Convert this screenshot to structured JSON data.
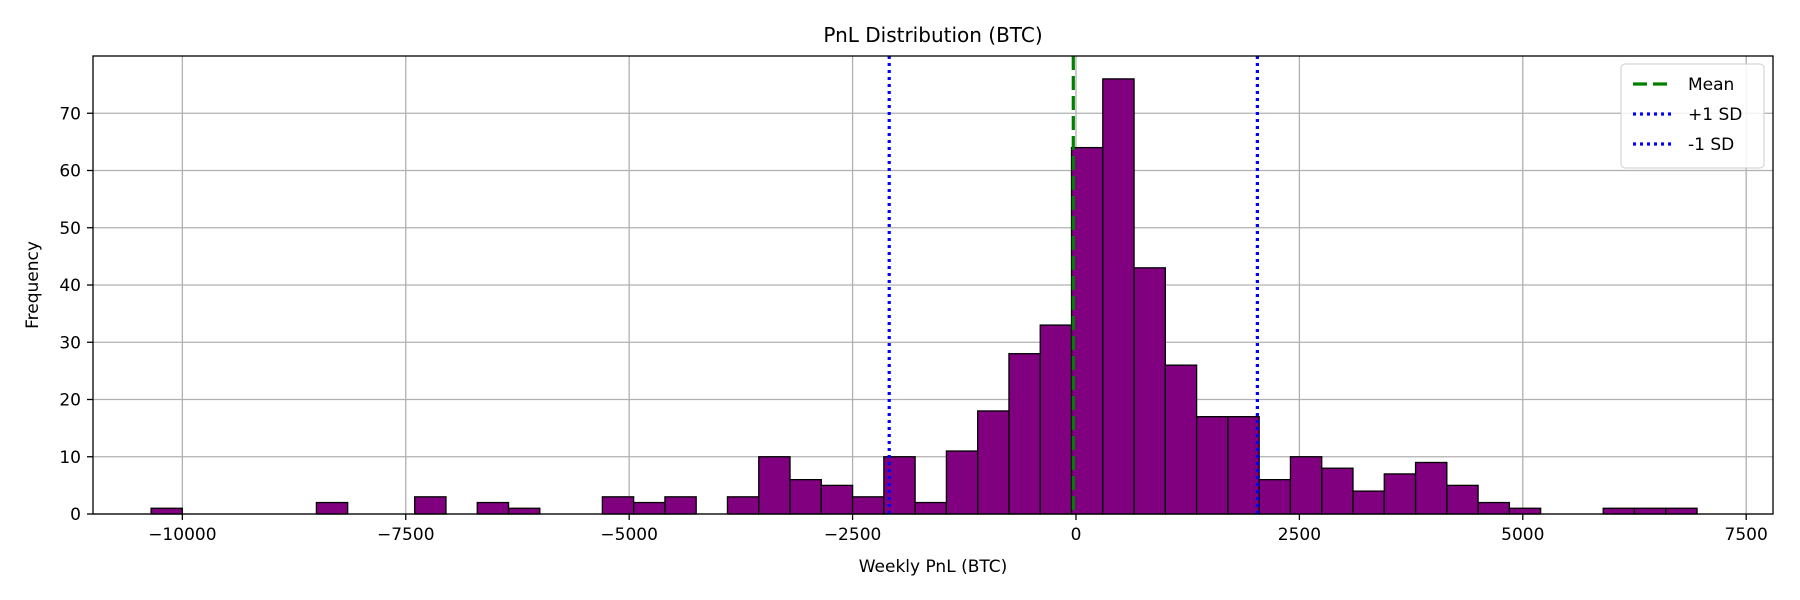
{
  "chart_data": {
    "type": "bar",
    "title": "PnL Distribution (BTC)",
    "xlabel": "Weekly PnL (BTC)",
    "ylabel": "Frequency",
    "xlim": [
      -11000,
      7800
    ],
    "ylim": [
      0,
      80
    ],
    "xticks": [
      -10000,
      -7500,
      -5000,
      -2500,
      0,
      2500,
      5000,
      7500
    ],
    "xtick_labels": [
      "−10000",
      "−7500",
      "−5000",
      "−2500",
      "0",
      "2500",
      "5000",
      "7500"
    ],
    "yticks": [
      0,
      10,
      20,
      30,
      40,
      50,
      60,
      70
    ],
    "ytick_labels": [
      "0",
      "10",
      "20",
      "30",
      "40",
      "50",
      "60",
      "70"
    ],
    "grid": true,
    "legend_position": "top-right",
    "bar_color": "#800080",
    "bar_edge_color": "#000000",
    "bins": [
      {
        "start": -10350,
        "end": -10000,
        "count": 1
      },
      {
        "start": -8500,
        "end": -8150,
        "count": 2
      },
      {
        "start": -7400,
        "end": -7050,
        "count": 3
      },
      {
        "start": -6700,
        "end": -6350,
        "count": 2
      },
      {
        "start": -6350,
        "end": -6000,
        "count": 1
      },
      {
        "start": -5300,
        "end": -4950,
        "count": 3
      },
      {
        "start": -4950,
        "end": -4600,
        "count": 2
      },
      {
        "start": -4600,
        "end": -4250,
        "count": 3
      },
      {
        "start": -3900,
        "end": -3550,
        "count": 3
      },
      {
        "start": -3550,
        "end": -3200,
        "count": 10
      },
      {
        "start": -3200,
        "end": -2850,
        "count": 6
      },
      {
        "start": -2850,
        "end": -2500,
        "count": 5
      },
      {
        "start": -2500,
        "end": -2150,
        "count": 3
      },
      {
        "start": -2150,
        "end": -1800,
        "count": 10
      },
      {
        "start": -1800,
        "end": -1450,
        "count": 2
      },
      {
        "start": -1450,
        "end": -1100,
        "count": 11
      },
      {
        "start": -1100,
        "end": -750,
        "count": 18
      },
      {
        "start": -750,
        "end": -400,
        "count": 28
      },
      {
        "start": -400,
        "end": -50,
        "count": 33
      },
      {
        "start": -50,
        "end": 300,
        "count": 64
      },
      {
        "start": 300,
        "end": 650,
        "count": 76
      },
      {
        "start": 650,
        "end": 1000,
        "count": 43
      },
      {
        "start": 1000,
        "end": 1350,
        "count": 26
      },
      {
        "start": 1350,
        "end": 1700,
        "count": 17
      },
      {
        "start": 1700,
        "end": 2050,
        "count": 17
      },
      {
        "start": 2050,
        "end": 2400,
        "count": 6
      },
      {
        "start": 2400,
        "end": 2750,
        "count": 10
      },
      {
        "start": 2750,
        "end": 3100,
        "count": 8
      },
      {
        "start": 3100,
        "end": 3450,
        "count": 4
      },
      {
        "start": 3450,
        "end": 3800,
        "count": 7
      },
      {
        "start": 3800,
        "end": 4150,
        "count": 9
      },
      {
        "start": 4150,
        "end": 4500,
        "count": 5
      },
      {
        "start": 4500,
        "end": 4850,
        "count": 2
      },
      {
        "start": 4850,
        "end": 5200,
        "count": 1
      },
      {
        "start": 5900,
        "end": 6250,
        "count": 1
      },
      {
        "start": 6250,
        "end": 6600,
        "count": 1
      },
      {
        "start": 6600,
        "end": 6950,
        "count": 1
      }
    ],
    "reference_lines": [
      {
        "name": "Mean",
        "value": -30,
        "color": "#008000",
        "style": "dashed"
      },
      {
        "name": "+1 SD",
        "value": 2030,
        "color": "#0000ff",
        "style": "dotted"
      },
      {
        "name": "-1 SD",
        "value": -2090,
        "color": "#0000ff",
        "style": "dotted"
      }
    ]
  }
}
